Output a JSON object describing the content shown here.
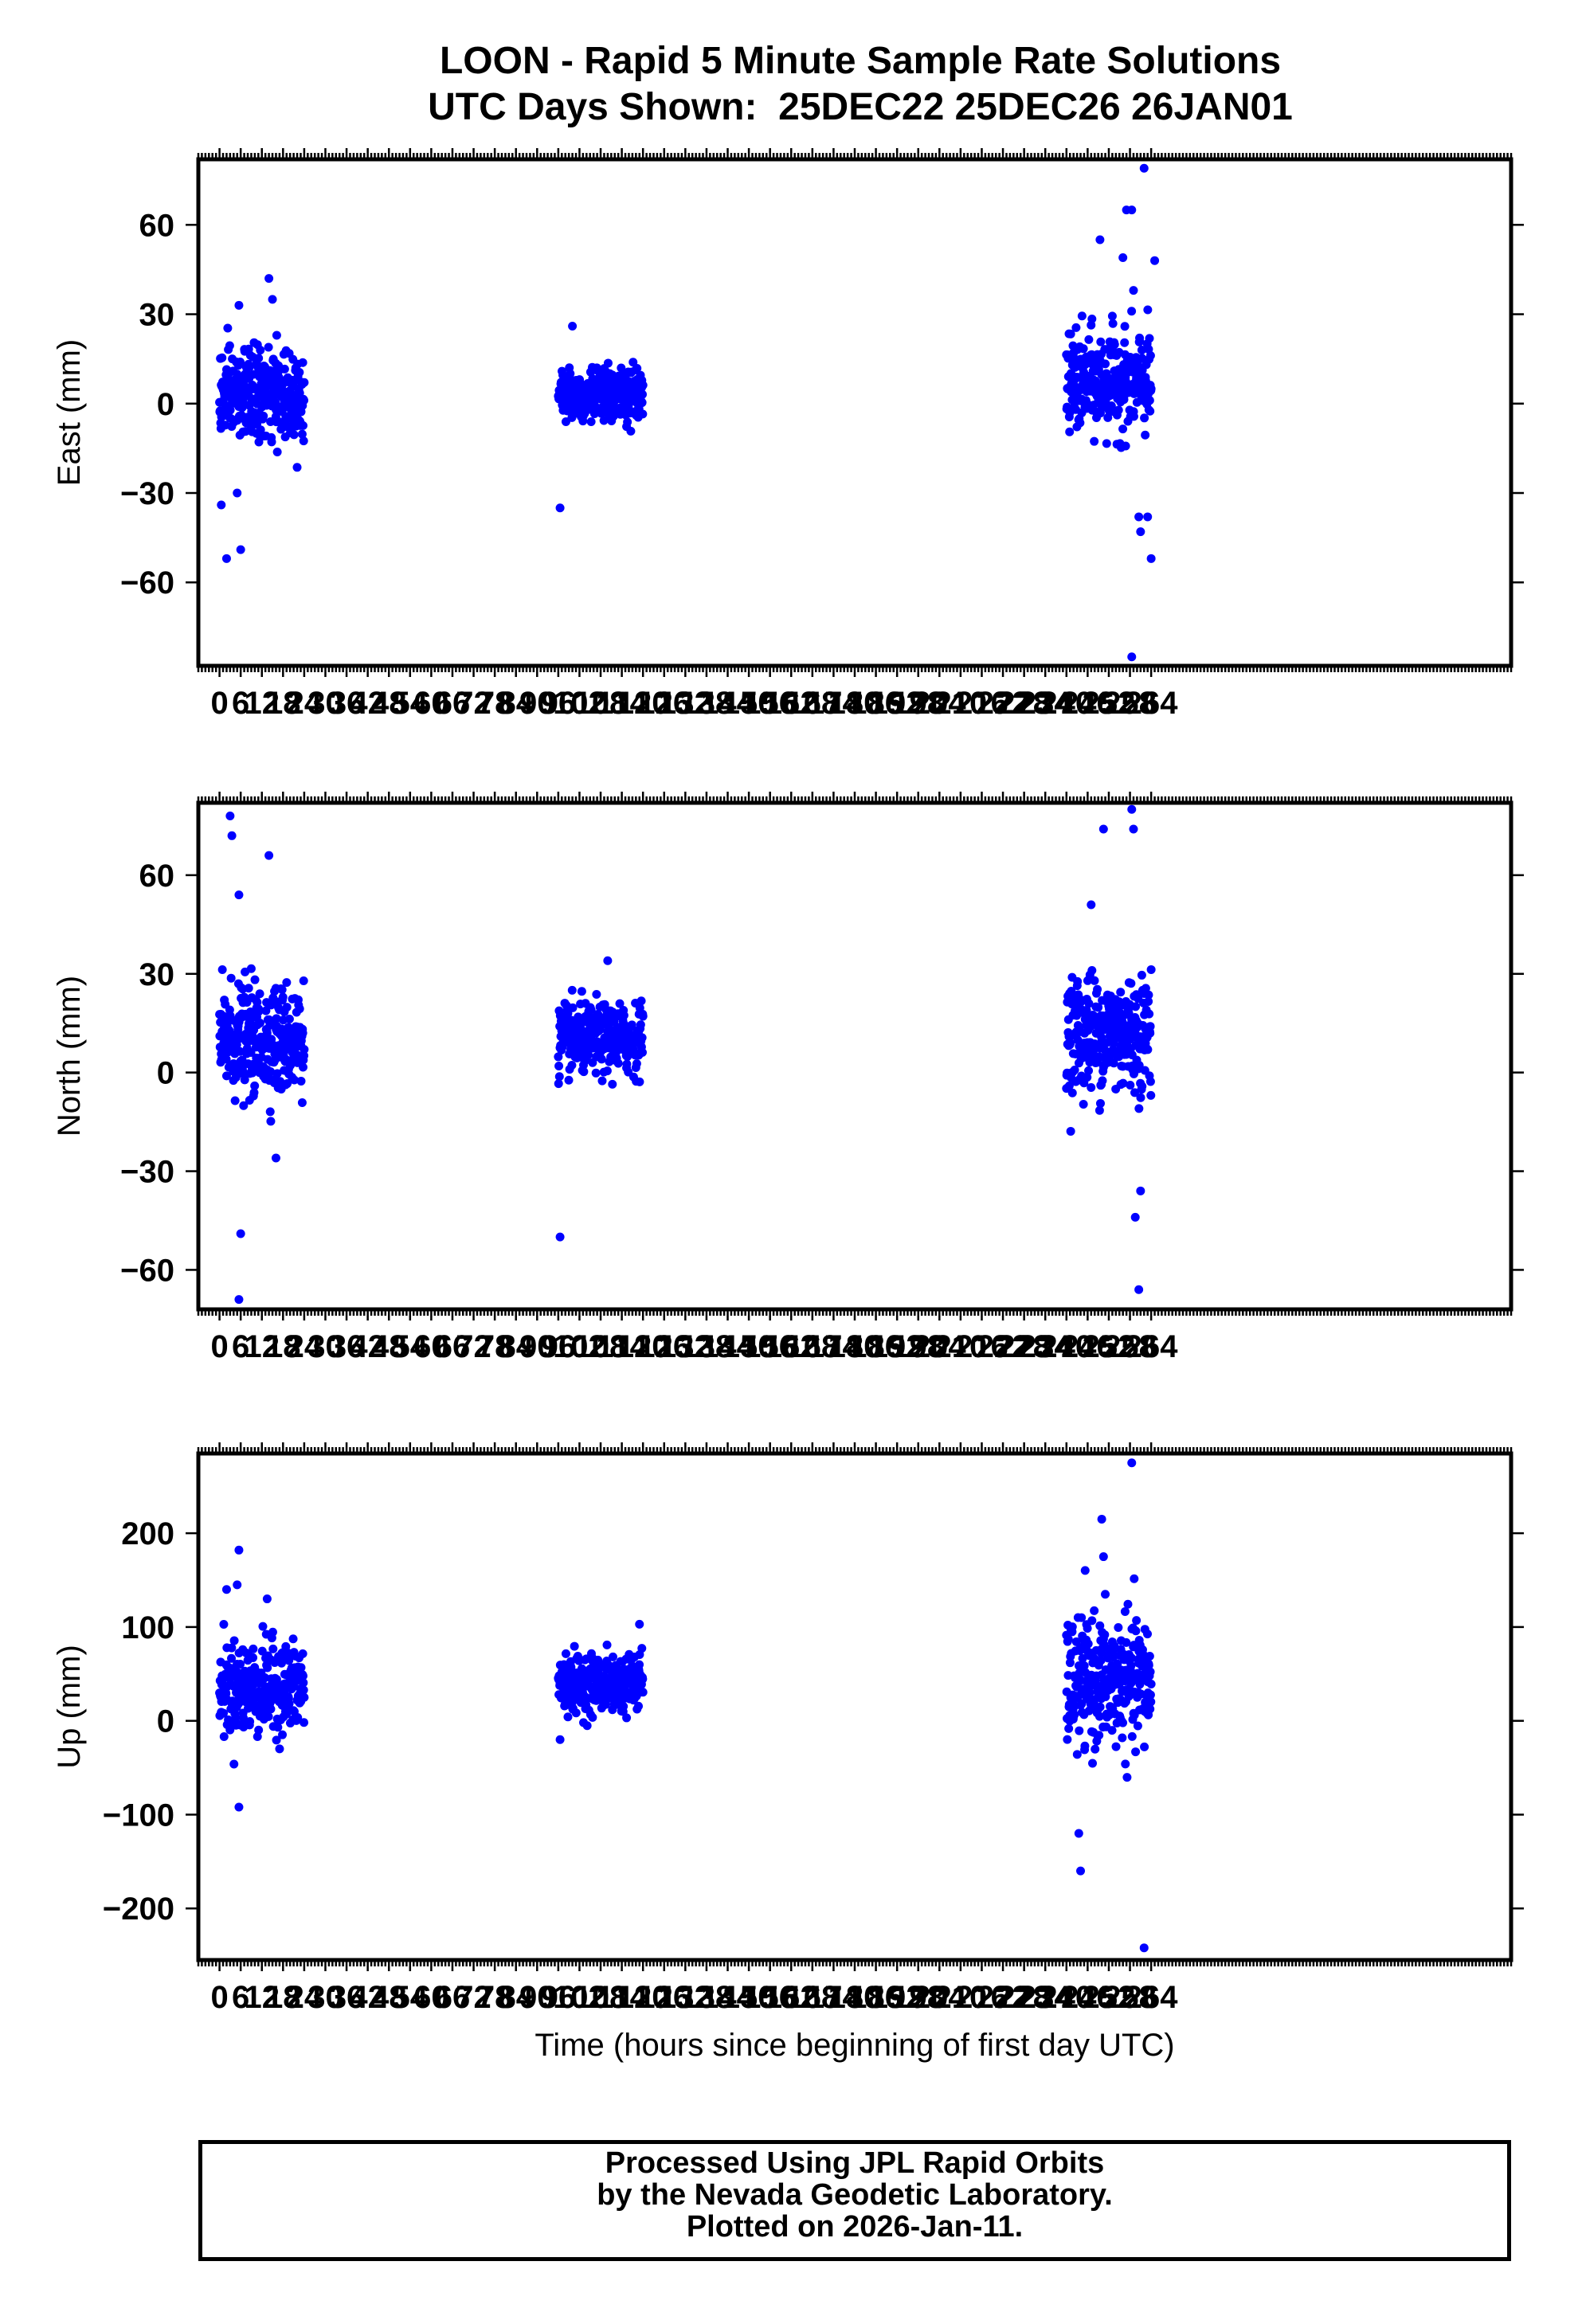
{
  "title": "LOON - Rapid 5 Minute Sample Rate Solutions",
  "subtitle": "UTC Days Shown:  25DEC22 25DEC26 26JAN01",
  "footer": {
    "line1": "Processed Using JPL Rapid Orbits",
    "line2": "by the Nevada Geodetic Laboratory.",
    "line3": "Plotted on 2026-Jan-11."
  },
  "colors": {
    "points": "#0000ff",
    "axes": "#000000"
  },
  "chart_data": [
    {
      "type": "scatter",
      "ylabel": "East (mm)",
      "xlabel": "",
      "xlim": [
        -6,
        366
      ],
      "ylim": [
        -88,
        82
      ],
      "yticks": [
        -60,
        -30,
        0,
        30,
        60
      ],
      "xticks": [
        0,
        6,
        12,
        18,
        24,
        30,
        36,
        42,
        48,
        54,
        60,
        66,
        72,
        78,
        84,
        90,
        96,
        102,
        108,
        114,
        120,
        126,
        132,
        138,
        144,
        150,
        156,
        162,
        168,
        174,
        180,
        186,
        192,
        198,
        204,
        210,
        216,
        222,
        228,
        234,
        240,
        246,
        252,
        258,
        264
      ],
      "x_tick_labels": [
        "0",
        "6",
        "12",
        "18",
        "24",
        "30",
        "36",
        "42",
        "48",
        "54",
        "60",
        "66",
        "72",
        "78",
        "84",
        "90",
        "96",
        "102",
        "108",
        "114",
        "120",
        "126",
        "132",
        "138",
        "144",
        "150",
        "156",
        "162",
        "168",
        "174",
        "180",
        "186",
        "192",
        "198",
        "204",
        "210",
        "216",
        "222",
        "228",
        "234",
        "240",
        "246",
        "252",
        "258",
        "264"
      ],
      "clusters": [
        {
          "x": [
            0,
            24
          ],
          "center": 3,
          "spread": 10,
          "n": 300
        },
        {
          "x": [
            96,
            120
          ],
          "center": 3,
          "spread": 6,
          "n": 300
        },
        {
          "x": [
            240,
            264
          ],
          "center": 7,
          "spread": 11,
          "n": 300
        }
      ],
      "outliers": [
        {
          "x": 2,
          "y": -52
        },
        {
          "x": 6,
          "y": -49
        },
        {
          "x": 0.5,
          "y": -34
        },
        {
          "x": 5,
          "y": -30
        },
        {
          "x": 14,
          "y": 42
        },
        {
          "x": 15,
          "y": 35
        },
        {
          "x": 5.5,
          "y": 33
        },
        {
          "x": 96.5,
          "y": -35
        },
        {
          "x": 100,
          "y": 26
        },
        {
          "x": 262,
          "y": 79
        },
        {
          "x": 258.5,
          "y": 65
        },
        {
          "x": 257,
          "y": 65
        },
        {
          "x": 249.5,
          "y": 55
        },
        {
          "x": 265,
          "y": 48
        },
        {
          "x": 256,
          "y": 49
        },
        {
          "x": 259,
          "y": 38
        },
        {
          "x": 264,
          "y": -52
        },
        {
          "x": 261,
          "y": -43
        },
        {
          "x": 260.5,
          "y": -38
        },
        {
          "x": 263,
          "y": -38
        },
        {
          "x": 258.5,
          "y": -85
        }
      ]
    },
    {
      "type": "scatter",
      "ylabel": "North (mm)",
      "xlabel": "",
      "xlim": [
        -6,
        366
      ],
      "ylim": [
        -72,
        82
      ],
      "yticks": [
        -60,
        -30,
        0,
        30,
        60
      ],
      "xticks": [
        0,
        6,
        12,
        18,
        24,
        30,
        36,
        42,
        48,
        54,
        60,
        66,
        72,
        78,
        84,
        90,
        96,
        102,
        108,
        114,
        120,
        126,
        132,
        138,
        144,
        150,
        156,
        162,
        168,
        174,
        180,
        186,
        192,
        198,
        204,
        210,
        216,
        222,
        228,
        234,
        240,
        246,
        252,
        258,
        264
      ],
      "x_tick_labels": [
        "0",
        "6",
        "12",
        "18",
        "24",
        "30",
        "36",
        "42",
        "48",
        "54",
        "60",
        "66",
        "72",
        "78",
        "84",
        "90",
        "96",
        "102",
        "108",
        "114",
        "120",
        "126",
        "132",
        "138",
        "144",
        "150",
        "156",
        "162",
        "168",
        "174",
        "180",
        "186",
        "192",
        "198",
        "204",
        "210",
        "216",
        "222",
        "228",
        "234",
        "240",
        "246",
        "252",
        "258",
        "264"
      ],
      "clusters": [
        {
          "x": [
            0,
            24
          ],
          "center": 10,
          "spread": 11,
          "n": 300
        },
        {
          "x": [
            96,
            120
          ],
          "center": 10,
          "spread": 7,
          "n": 300
        },
        {
          "x": [
            240,
            264
          ],
          "center": 12,
          "spread": 12,
          "n": 300
        }
      ],
      "outliers": [
        {
          "x": 3,
          "y": 78
        },
        {
          "x": 3.5,
          "y": 72
        },
        {
          "x": 14,
          "y": 66
        },
        {
          "x": 5.5,
          "y": 54
        },
        {
          "x": 6,
          "y": -49
        },
        {
          "x": 5.5,
          "y": -69
        },
        {
          "x": 16,
          "y": -26
        },
        {
          "x": 96.5,
          "y": -50
        },
        {
          "x": 110,
          "y": 34
        },
        {
          "x": 258.5,
          "y": 80
        },
        {
          "x": 259,
          "y": 74
        },
        {
          "x": 250.5,
          "y": 74
        },
        {
          "x": 247,
          "y": 51
        },
        {
          "x": 259.5,
          "y": -44
        },
        {
          "x": 260.5,
          "y": -66
        },
        {
          "x": 261,
          "y": -36
        }
      ]
    },
    {
      "type": "scatter",
      "ylabel": "Up (mm)",
      "xlabel": "Time (hours since beginning of first day UTC)",
      "xlim": [
        -6,
        366
      ],
      "ylim": [
        -255,
        285
      ],
      "yticks": [
        -200,
        -100,
        0,
        100,
        200
      ],
      "xticks": [
        0,
        6,
        12,
        18,
        24,
        30,
        36,
        42,
        48,
        54,
        60,
        66,
        72,
        78,
        84,
        90,
        96,
        102,
        108,
        114,
        120,
        126,
        132,
        138,
        144,
        150,
        156,
        162,
        168,
        174,
        180,
        186,
        192,
        198,
        204,
        210,
        216,
        222,
        228,
        234,
        240,
        246,
        252,
        258,
        264
      ],
      "x_tick_labels": [
        "0",
        "6",
        "12",
        "18",
        "24",
        "30",
        "36",
        "42",
        "48",
        "54",
        "60",
        "66",
        "72",
        "78",
        "84",
        "90",
        "96",
        "102",
        "108",
        "114",
        "120",
        "126",
        "132",
        "138",
        "144",
        "150",
        "156",
        "162",
        "168",
        "174",
        "180",
        "186",
        "192",
        "198",
        "204",
        "210",
        "216",
        "222",
        "228",
        "234",
        "240",
        "246",
        "252",
        "258",
        "264"
      ],
      "clusters": [
        {
          "x": [
            0,
            24
          ],
          "center": 35,
          "spread": 32,
          "n": 300
        },
        {
          "x": [
            96,
            120
          ],
          "center": 40,
          "spread": 20,
          "n": 300
        },
        {
          "x": [
            240,
            264
          ],
          "center": 40,
          "spread": 45,
          "n": 300
        }
      ],
      "outliers": [
        {
          "x": 5.5,
          "y": 182
        },
        {
          "x": 5,
          "y": 145
        },
        {
          "x": 2,
          "y": 140
        },
        {
          "x": 13.5,
          "y": 130
        },
        {
          "x": 5.5,
          "y": -92
        },
        {
          "x": 96.5,
          "y": -20
        },
        {
          "x": 119,
          "y": 103
        },
        {
          "x": 258.5,
          "y": 275
        },
        {
          "x": 250,
          "y": 215
        },
        {
          "x": 250.5,
          "y": 175
        },
        {
          "x": 244,
          "y": -160
        },
        {
          "x": 243.5,
          "y": -120
        },
        {
          "x": 262,
          "y": -242
        }
      ]
    }
  ]
}
